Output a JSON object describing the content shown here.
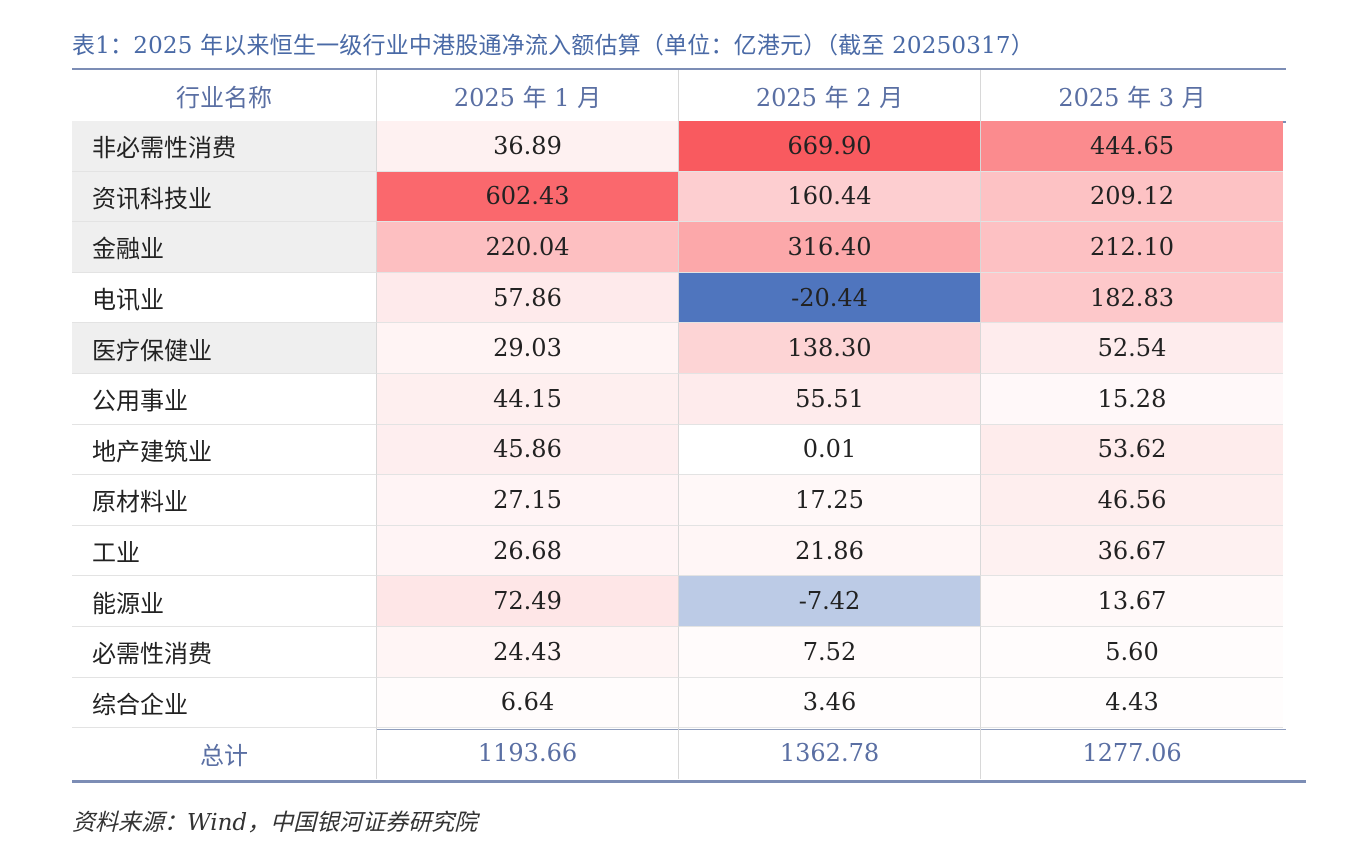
{
  "title": "表1：2025 年以来恒生一级行业中港股通净流入额估算（单位：亿港元）（截至 20250317）",
  "source": "资料来源：Wind，中国银河证券研究院",
  "chart_data": {
    "type": "table",
    "columns": [
      "行业名称",
      "2025 年 1 月",
      "2025 年 2 月",
      "2025 年 3 月"
    ],
    "rows": [
      {
        "name": "非必需性消费",
        "values": [
          "36.89",
          "669.90",
          "444.65"
        ]
      },
      {
        "name": "资讯科技业",
        "values": [
          "602.43",
          "160.44",
          "209.12"
        ]
      },
      {
        "name": "金融业",
        "values": [
          "220.04",
          "316.40",
          "212.10"
        ]
      },
      {
        "name": "电讯业",
        "values": [
          "57.86",
          "-20.44",
          "182.83"
        ]
      },
      {
        "name": "医疗保健业",
        "values": [
          "29.03",
          "138.30",
          "52.54"
        ]
      },
      {
        "name": "公用事业",
        "values": [
          "44.15",
          "55.51",
          "15.28"
        ]
      },
      {
        "name": "地产建筑业",
        "values": [
          "45.86",
          "0.01",
          "53.62"
        ]
      },
      {
        "name": "原材料业",
        "values": [
          "27.15",
          "17.25",
          "46.56"
        ]
      },
      {
        "name": "工业",
        "values": [
          "26.68",
          "21.86",
          "36.67"
        ]
      },
      {
        "name": "能源业",
        "values": [
          "72.49",
          "-7.42",
          "13.67"
        ]
      },
      {
        "name": "必需性消费",
        "values": [
          "24.43",
          "7.52",
          "5.60"
        ]
      },
      {
        "name": "综合企业",
        "values": [
          "6.64",
          "3.46",
          "4.43"
        ]
      }
    ],
    "total": {
      "name": "总计",
      "values": [
        "1193.66",
        "1362.78",
        "1277.06"
      ]
    },
    "heatmap_colors": {
      "positive_max": "#f95a5f",
      "negative_max": "#4f75be",
      "neutral": "#ffffff"
    }
  }
}
